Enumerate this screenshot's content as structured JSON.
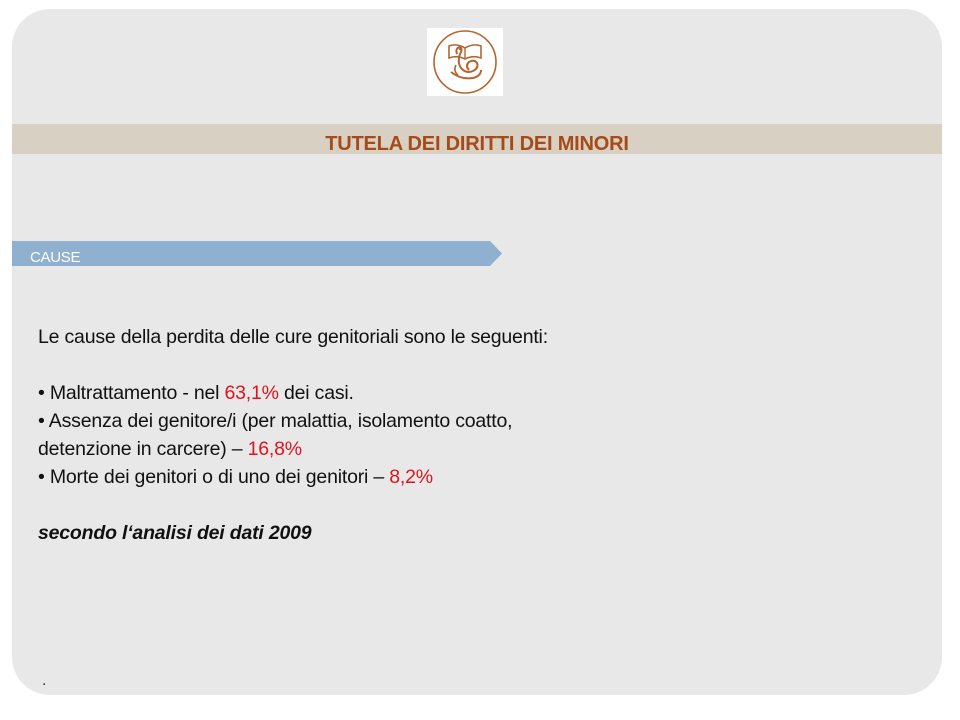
{
  "header": {
    "title": "TUTELA DEI DIRITTI DEI MINORI"
  },
  "section": {
    "label": "CAUSE"
  },
  "content": {
    "intro": "Le cause della perdita delle cure genitoriali sono le seguenti:",
    "bullets": [
      {
        "bullet": "•",
        "text_before": "Maltrattamento  - nel ",
        "value": "63,1%",
        "text_after": " dei casi."
      },
      {
        "bullet": "•",
        "text_before": "Assenza dei  genitore/i  (per  malattia, isolamento coatto, detenzione in carcere) – ",
        "value": "16,8%",
        "text_after": ""
      },
      {
        "bullet": "•",
        "text_before": "Morte dei genitori o di uno dei genitori – ",
        "value": "8,2%",
        "text_after": ""
      }
    ],
    "source_note": "secondo l‘analisi dei dati 2009"
  },
  "footer": {
    "dot": "."
  },
  "colors": {
    "slide_background": "#e8e8e9",
    "title_band": "#d8d1c3",
    "title_text": "#a64a1a",
    "section_arrow": "#8fb0cf",
    "highlight": "#e0141d",
    "logo_accent": "#b5652f"
  },
  "icons": {
    "logo": "book-with-bird-emblem"
  }
}
